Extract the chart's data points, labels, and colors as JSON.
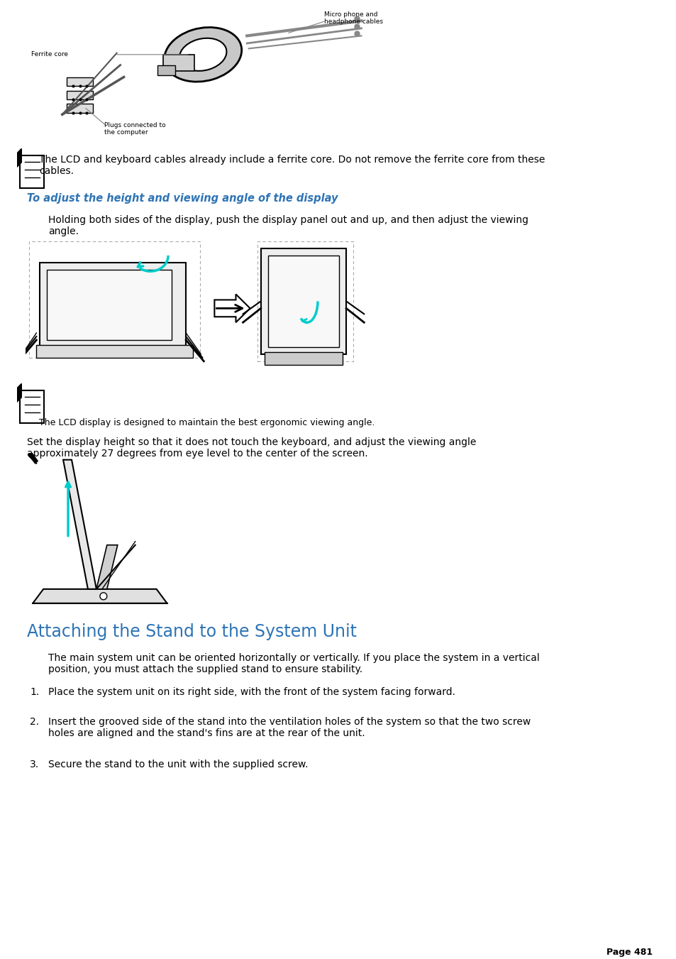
{
  "bg_color": "#ffffff",
  "title_color": "#2e74b5",
  "subtitle_color": "#2e74b5",
  "body_color": "#000000",
  "section_heading": "Attaching the Stand to the System Unit",
  "section_heading_size": 17,
  "subtitle_italic": "To adjust the height and viewing angle of the display",
  "subtitle_size": 10.5,
  "note1_text": "The LCD and keyboard cables already include a ferrite core. Do not remove the ferrite core from these\ncables.",
  "note_size": 10,
  "body1_text": "Holding both sides of the display, push the display panel out and up, and then adjust the viewing\nangle.",
  "body_size": 10,
  "body2_text": "The LCD display is designed to maintain the best ergonomic viewing angle.",
  "body3_text": "Set the display height so that it does not touch the keyboard, and adjust the viewing angle\napproximately 27 degrees from eye level to the center of the screen.",
  "section_body_text": "The main system unit can be oriented horizontally or vertically. If you place the system in a vertical\nposition, you must attach the supplied stand to ensure stability.",
  "list_items": [
    {
      "num": "1.",
      "text": "Place the system unit on its right side, with the front of the system facing forward."
    },
    {
      "num": "2.",
      "text": "Insert the grooved side of the stand into the ventilation holes of the system so that the two screw\nholes are aligned and the stand's fins are at the rear of the unit."
    },
    {
      "num": "3.",
      "text": "Secure the stand to the unit with the supplied screw."
    }
  ],
  "page_label": "Page 481"
}
